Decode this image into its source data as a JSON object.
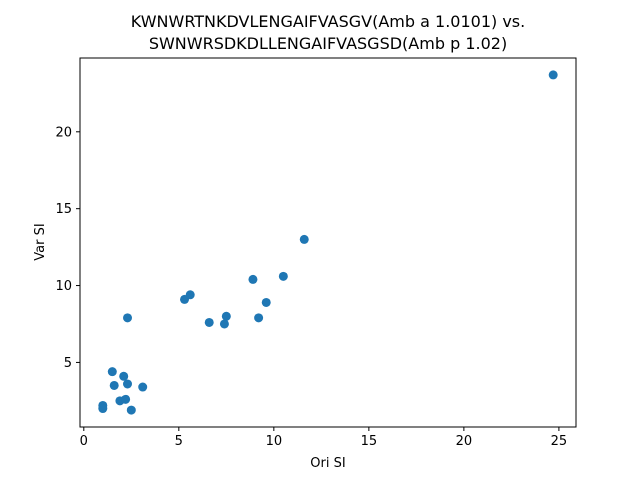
{
  "chart_data": {
    "type": "scatter",
    "title_line1": "KWNWRTNKDVLENGAIFVASGV(Amb a 1.0101) vs.",
    "title_line2": "SWNWRSDKDLLENGAIFVASGSD(Amb p 1.02)",
    "xlabel": "Ori SI",
    "ylabel": "Var SI",
    "xlim": [
      -0.2,
      25.9
    ],
    "ylim": [
      0.8,
      24.8
    ],
    "xticks": [
      0,
      5,
      10,
      15,
      20,
      25
    ],
    "yticks": [
      5,
      10,
      15,
      20
    ],
    "grid": false,
    "marker_color": "#1f77b4",
    "points": [
      {
        "x": 1.0,
        "y": 2.2
      },
      {
        "x": 1.0,
        "y": 2.0
      },
      {
        "x": 1.5,
        "y": 4.4
      },
      {
        "x": 1.6,
        "y": 3.5
      },
      {
        "x": 1.9,
        "y": 2.5
      },
      {
        "x": 2.1,
        "y": 4.1
      },
      {
        "x": 2.2,
        "y": 2.6
      },
      {
        "x": 2.3,
        "y": 3.6
      },
      {
        "x": 2.3,
        "y": 7.9
      },
      {
        "x": 2.5,
        "y": 1.9
      },
      {
        "x": 3.1,
        "y": 3.4
      },
      {
        "x": 5.3,
        "y": 9.1
      },
      {
        "x": 5.6,
        "y": 9.4
      },
      {
        "x": 6.6,
        "y": 7.6
      },
      {
        "x": 7.4,
        "y": 7.5
      },
      {
        "x": 7.5,
        "y": 8.0
      },
      {
        "x": 8.9,
        "y": 10.4
      },
      {
        "x": 9.2,
        "y": 7.9
      },
      {
        "x": 9.6,
        "y": 8.9
      },
      {
        "x": 10.5,
        "y": 10.6
      },
      {
        "x": 11.6,
        "y": 13.0
      },
      {
        "x": 24.7,
        "y": 23.7
      }
    ]
  }
}
